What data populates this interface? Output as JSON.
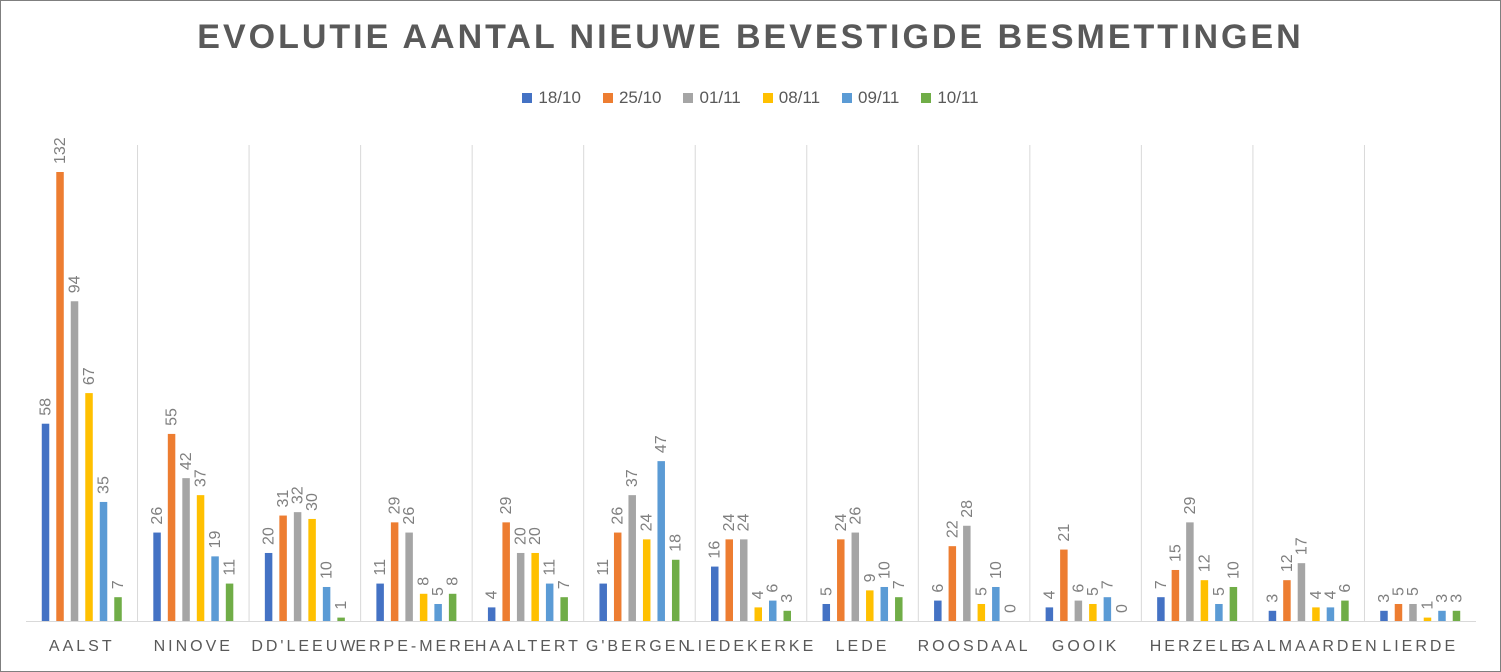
{
  "chart_data": {
    "type": "bar",
    "title": "EVOLUTIE AANTAL NIEUWE BEVESTIGDE BESMETTINGEN",
    "xlabel": "",
    "ylabel": "",
    "ylim": [
      0,
      140
    ],
    "categories": [
      "AALST",
      "NINOVE",
      "DD'LEEUW",
      "ERPE-MERE",
      "HAALTERT",
      "G'BERGEN",
      "LIEDEKERKE",
      "LEDE",
      "ROOSDAAL",
      "GOOIK",
      "HERZELE",
      "GALMAARDEN",
      "LIERDE"
    ],
    "series": [
      {
        "name": "18/10",
        "color": "#4472c4",
        "values": [
          58,
          26,
          20,
          11,
          4,
          11,
          16,
          5,
          6,
          4,
          7,
          3,
          3
        ]
      },
      {
        "name": "25/10",
        "color": "#ed7d31",
        "values": [
          132,
          55,
          31,
          29,
          29,
          26,
          24,
          24,
          22,
          21,
          15,
          12,
          5
        ]
      },
      {
        "name": "01/11",
        "color": "#a5a5a5",
        "values": [
          94,
          42,
          32,
          26,
          20,
          37,
          24,
          26,
          28,
          6,
          29,
          17,
          5
        ]
      },
      {
        "name": "08/11",
        "color": "#ffc000",
        "values": [
          67,
          37,
          30,
          8,
          20,
          24,
          4,
          9,
          5,
          5,
          12,
          4,
          1
        ]
      },
      {
        "name": "09/11",
        "color": "#5b9bd5",
        "values": [
          35,
          19,
          10,
          5,
          11,
          47,
          6,
          10,
          10,
          7,
          5,
          4,
          3
        ]
      },
      {
        "name": "10/11",
        "color": "#70ad47",
        "values": [
          7,
          11,
          1,
          8,
          7,
          18,
          3,
          7,
          0,
          0,
          10,
          6,
          3
        ]
      }
    ],
    "legend_position": "top-center",
    "gridlines": false,
    "category_separators": true
  }
}
